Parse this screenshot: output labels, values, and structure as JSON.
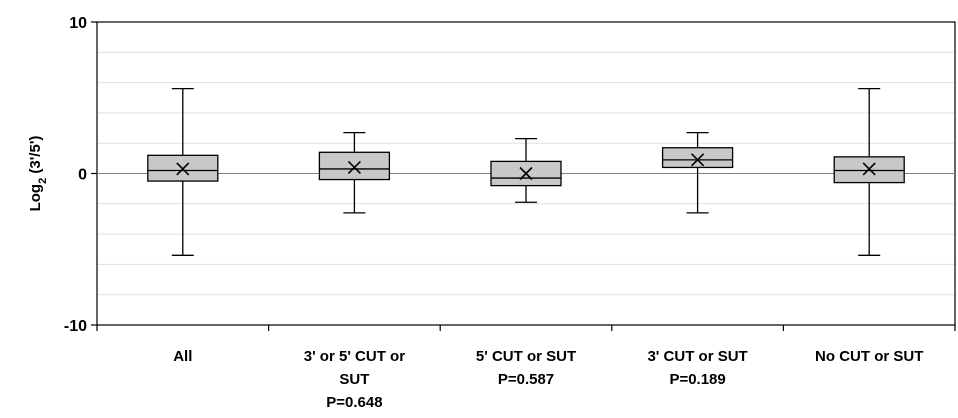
{
  "chart_data": {
    "type": "box",
    "ylabel": "Log",
    "ylabel_sub": "2",
    "ylabel_rest": " (3'/5')",
    "ylim": [
      -10,
      10
    ],
    "yticks": [
      -10,
      0,
      10
    ],
    "minor_grid_step": 2,
    "grid": true,
    "colors": {
      "box_fill": "#c8c8c8",
      "stroke": "#000000",
      "grid": "#e0e0e0",
      "zero_line": "#808080"
    },
    "categories": [
      {
        "label_lines": [
          "All"
        ],
        "whisker_low": -5.4,
        "q1": -0.5,
        "median": 0.2,
        "q3": 1.2,
        "whisker_high": 5.6,
        "mean": 0.3
      },
      {
        "label_lines": [
          "3' or 5' CUT or",
          "SUT",
          "P=0.648"
        ],
        "whisker_low": -2.6,
        "q1": -0.4,
        "median": 0.3,
        "q3": 1.4,
        "whisker_high": 2.7,
        "mean": 0.4
      },
      {
        "label_lines": [
          "5' CUT or SUT",
          "P=0.587"
        ],
        "whisker_low": -1.9,
        "q1": -0.8,
        "median": -0.3,
        "q3": 0.8,
        "whisker_high": 2.3,
        "mean": 0.0
      },
      {
        "label_lines": [
          "3' CUT or SUT",
          "P=0.189"
        ],
        "whisker_low": -2.6,
        "q1": 0.4,
        "median": 0.9,
        "q3": 1.7,
        "whisker_high": 2.7,
        "mean": 0.9
      },
      {
        "label_lines": [
          "No CUT or SUT"
        ],
        "whisker_low": -5.4,
        "q1": -0.6,
        "median": 0.2,
        "q3": 1.1,
        "whisker_high": 5.6,
        "mean": 0.3
      }
    ]
  }
}
